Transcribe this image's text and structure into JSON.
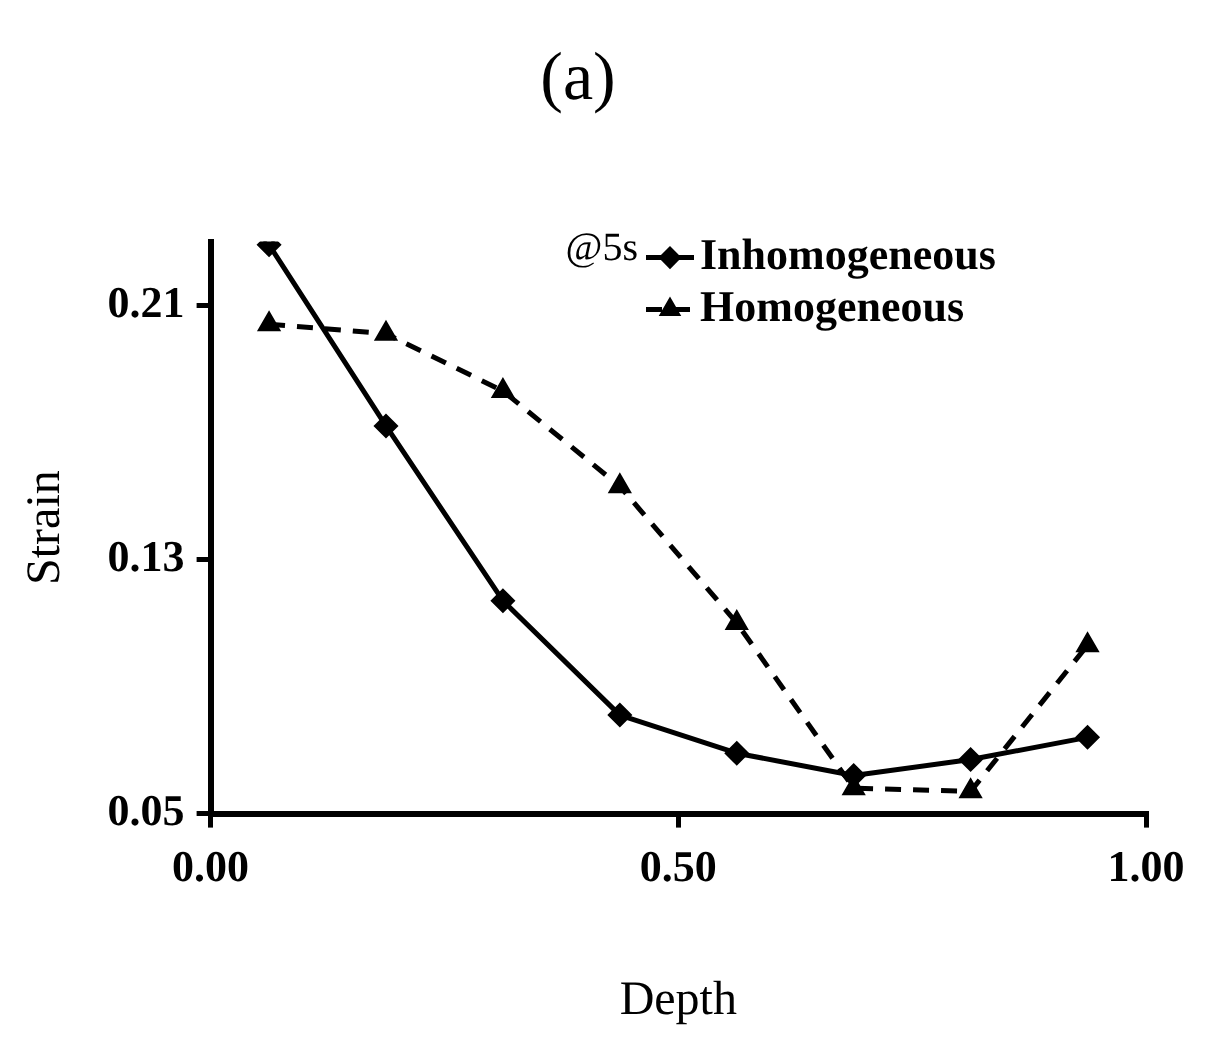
{
  "chart_data": {
    "type": "line",
    "title": "(a)",
    "xlabel": "Depth",
    "ylabel": "Strain",
    "x": [
      0.0625,
      0.1875,
      0.3125,
      0.4375,
      0.5625,
      0.6875,
      0.8125,
      0.9375
    ],
    "series": [
      {
        "name": "Inhomogeneous",
        "color": "#000000",
        "marker": "diamond",
        "line_style": "solid",
        "values": [
          0.229,
          0.172,
          0.117,
          0.081,
          0.069,
          0.062,
          0.067,
          0.074
        ]
      },
      {
        "name": "Homogeneous",
        "color": "#000000",
        "marker": "triangle",
        "line_style": "dashed",
        "values": [
          0.204,
          0.201,
          0.183,
          0.153,
          0.11,
          0.058,
          0.057,
          0.103
        ]
      }
    ],
    "xlim": [
      0,
      1
    ],
    "xticks": [
      {
        "value": 0,
        "label": "0.00"
      },
      {
        "value": 0.5,
        "label": "0.50"
      },
      {
        "value": 1,
        "label": "1.00"
      }
    ],
    "ylim": [
      0.05,
      0.23
    ],
    "yticks": [
      {
        "value": 0.05,
        "label": "0.05"
      },
      {
        "value": 0.13,
        "label": "0.13"
      },
      {
        "value": 0.21,
        "label": "0.21"
      }
    ],
    "grid": false,
    "legend": "top right",
    "annotations": [
      "@5s"
    ]
  }
}
